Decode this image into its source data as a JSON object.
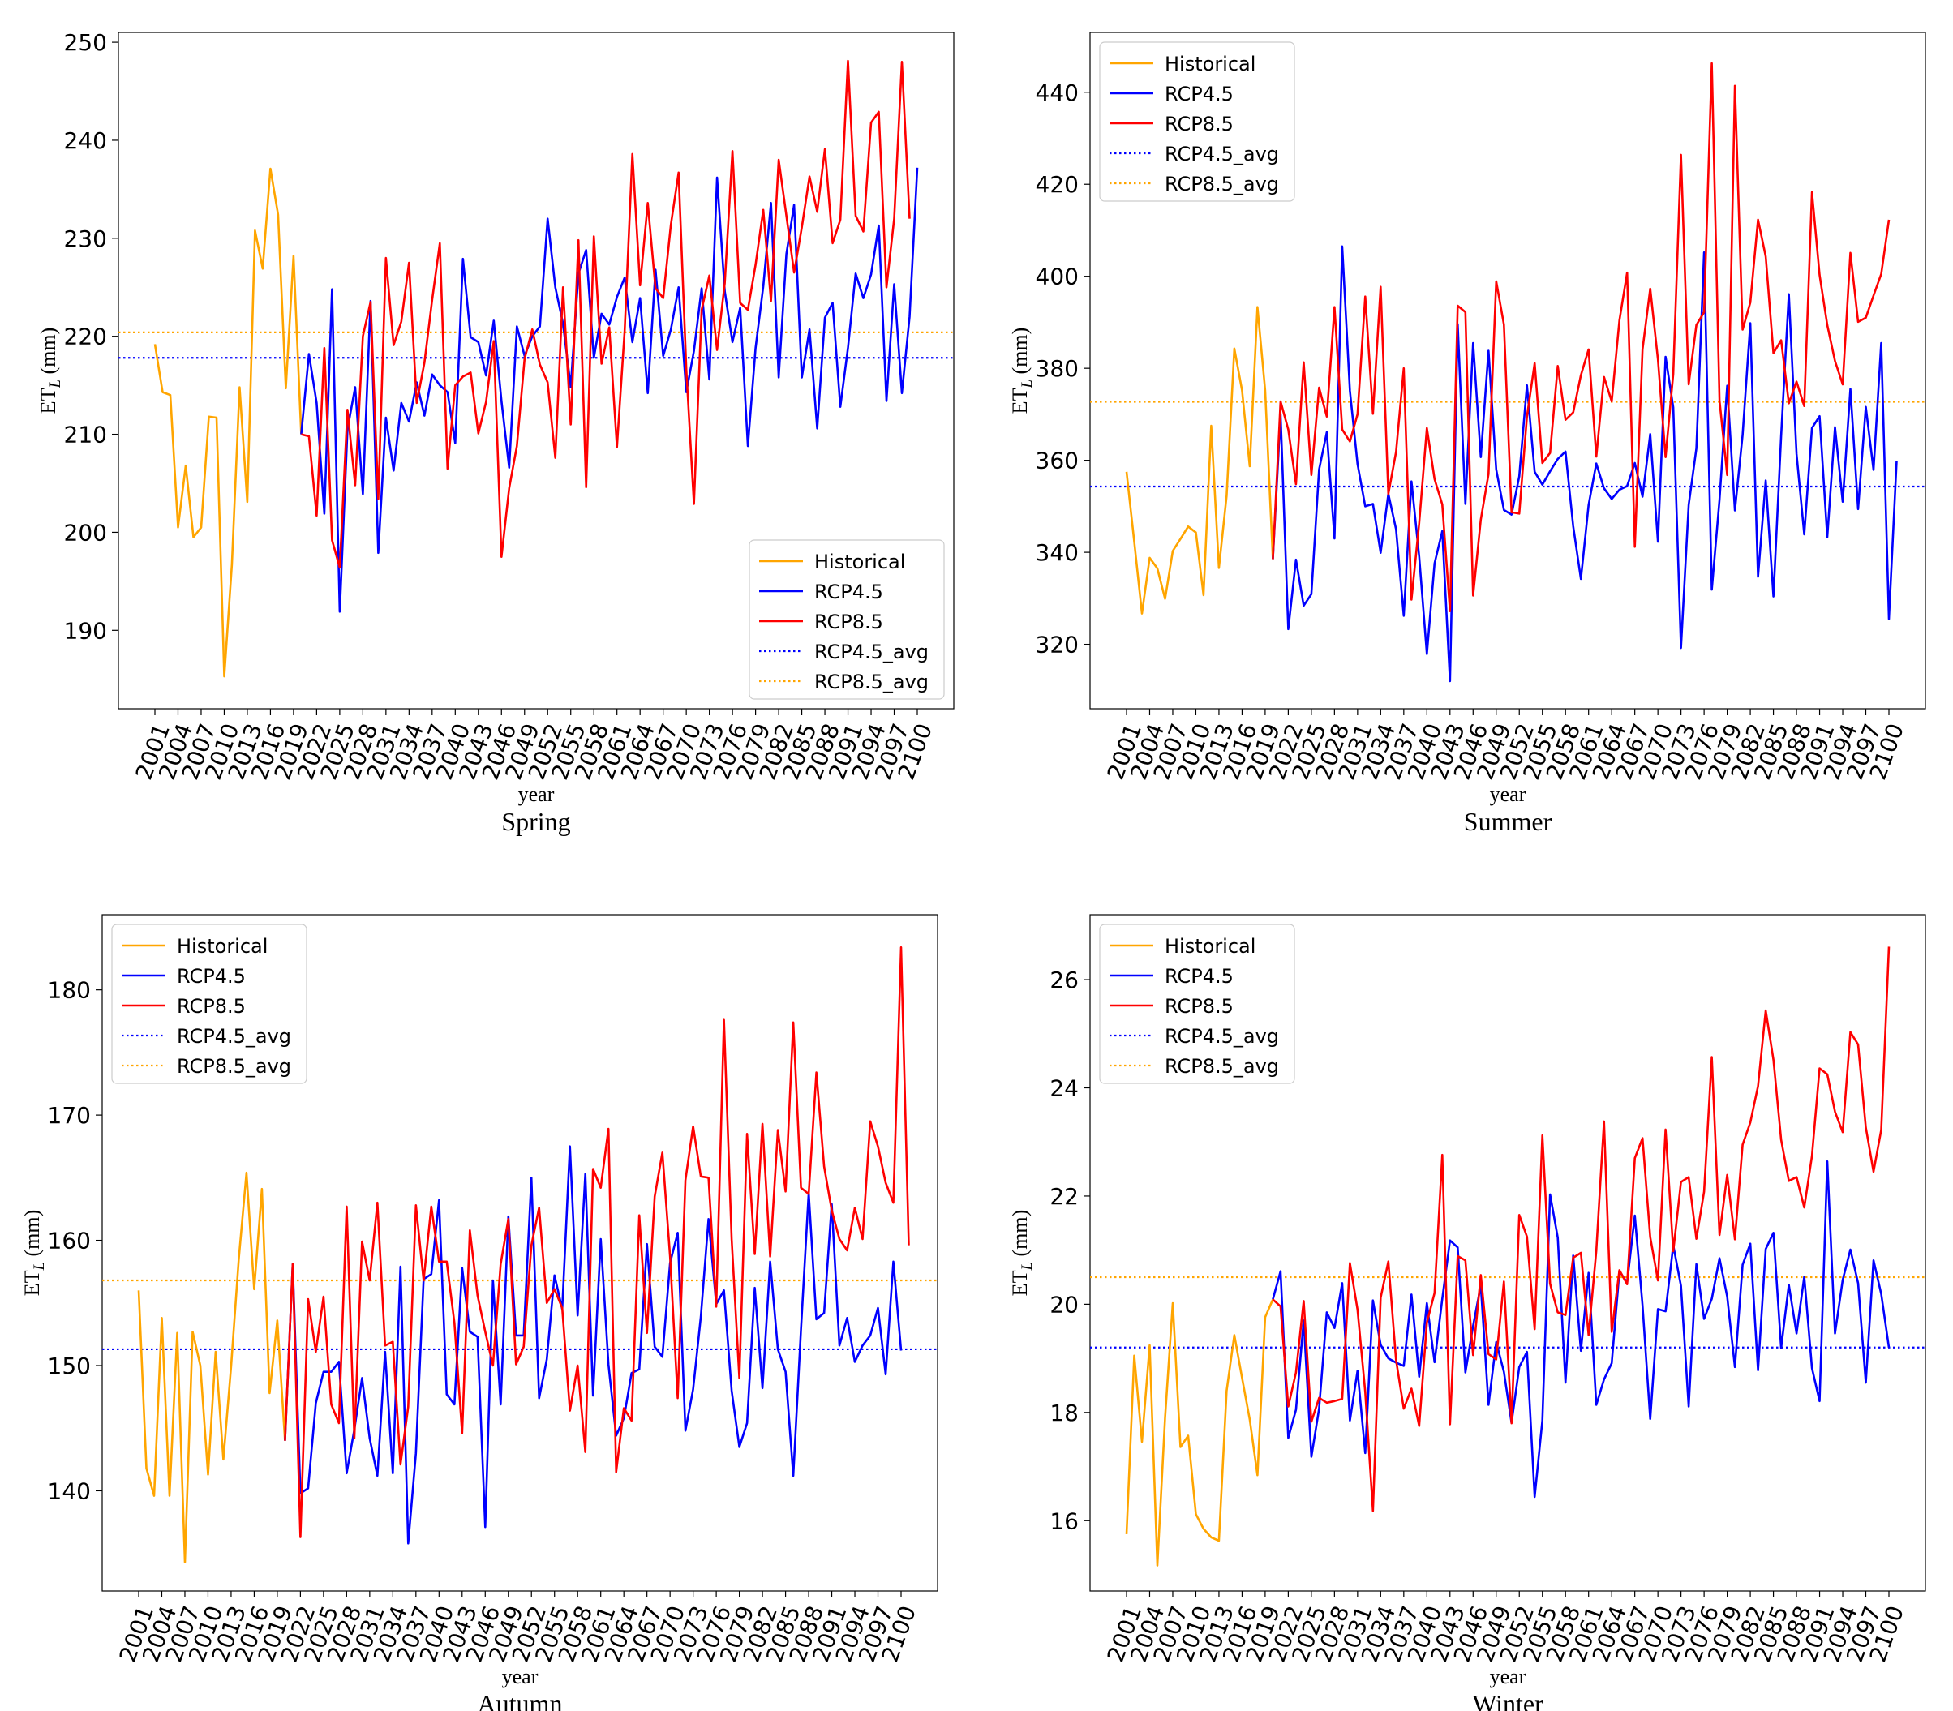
{
  "colors": {
    "historical": "#ffa500",
    "rcp45": "#0000ff",
    "rcp85": "#ff0000",
    "rcp45_avg": "#0000ff",
    "rcp85_avg": "#ffa500"
  },
  "legend_labels": [
    "Historical",
    "RCP4.5",
    "RCP8.5",
    "RCP4.5_avg",
    "RCP8.5_avg"
  ],
  "x_ticks": [
    2001,
    2004,
    2007,
    2010,
    2013,
    2016,
    2019,
    2022,
    2025,
    2028,
    2031,
    2034,
    2037,
    2040,
    2043,
    2046,
    2049,
    2052,
    2055,
    2058,
    2061,
    2064,
    2067,
    2070,
    2073,
    2076,
    2079,
    2082,
    2085,
    2088,
    2091,
    2094,
    2097,
    2100
  ],
  "chart_data": [
    {
      "type": "line",
      "title": "Spring",
      "xlabel": "year",
      "ylabel": "ET_L (mm)",
      "ylim": [
        182,
        251
      ],
      "yticks": [
        190,
        200,
        210,
        220,
        230,
        240,
        250
      ],
      "legend_position": "lower-right",
      "series": [
        {
          "name": "Historical",
          "x_start": 2001,
          "values": [
            219.2,
            214.3,
            214.0,
            200.5,
            206.8,
            199.5,
            200.5,
            211.8,
            211.7,
            185.3,
            196.7,
            214.8,
            203.1,
            230.8,
            226.9,
            237.1,
            232.4,
            214.7,
            228.2,
            210.0
          ]
        },
        {
          "name": "RCP4.5",
          "x_start": 2020,
          "values": [
            210.0,
            218.2,
            213.2,
            201.9,
            224.8,
            191.9,
            210.5,
            214.8,
            203.9,
            223.6,
            197.9,
            211.7,
            206.3,
            213.2,
            211.3,
            215.3,
            211.9,
            216.1,
            215.0,
            214.3,
            209.1,
            227.9,
            219.9,
            219.4,
            216.0,
            221.6,
            213.4,
            206.6,
            221.0,
            218.0,
            220.0,
            221.0,
            232.0,
            225.0,
            221.3,
            214.8,
            226.4,
            228.8,
            217.8,
            222.3,
            221.2,
            224.0,
            226.0,
            219.4,
            223.9,
            214.2,
            226.8,
            218.0,
            220.7,
            225.0,
            214.3,
            218.5,
            224.9,
            215.6,
            236.2,
            224.6,
            219.4,
            222.9,
            208.8,
            218.8,
            225.1,
            233.6,
            215.8,
            228.4,
            233.4,
            215.8,
            220.7,
            210.6,
            221.9,
            223.4,
            212.8,
            218.8,
            226.4,
            223.9,
            226.3,
            231.3,
            213.4,
            225.3,
            214.2,
            222.0,
            237.2
          ]
        },
        {
          "name": "RCP8.5",
          "x_start": 2020,
          "values": [
            210.0,
            209.8,
            201.7,
            218.8,
            199.2,
            196.4,
            212.5,
            204.8,
            220.0,
            223.5,
            203.4,
            228.0,
            219.1,
            221.5,
            227.5,
            213.2,
            217.3,
            223.7,
            229.5,
            206.5,
            215.0,
            215.9,
            216.3,
            210.1,
            213.3,
            219.5,
            197.5,
            204.5,
            208.8,
            217.7,
            220.7,
            217.1,
            215.3,
            207.6,
            225.0,
            211.0,
            229.8,
            204.6,
            230.2,
            217.2,
            220.9,
            208.7,
            220.6,
            238.6,
            225.2,
            233.6,
            224.9,
            223.9,
            231.4,
            236.7,
            216.6,
            202.9,
            222.7,
            226.2,
            218.6,
            225.4,
            238.9,
            223.4,
            222.7,
            227.3,
            232.9,
            223.6,
            238.0,
            232.3,
            226.5,
            231.1,
            236.3,
            232.7,
            239.1,
            229.5,
            231.9,
            248.1,
            232.3,
            230.7,
            241.8,
            242.9,
            225.0,
            232.0,
            248.0,
            232.0
          ]
        }
      ],
      "avg_lines": [
        {
          "name": "RCP4.5_avg",
          "value": 217.8
        },
        {
          "name": "RCP8.5_avg",
          "value": 220.4
        }
      ]
    },
    {
      "type": "line",
      "title": "Summer",
      "xlabel": "year",
      "ylabel": "ET_L (mm)",
      "ylim": [
        306,
        453
      ],
      "yticks": [
        320,
        340,
        360,
        380,
        400,
        420,
        440
      ],
      "legend_position": "upper-left",
      "series": [
        {
          "name": "Historical",
          "x_start": 2001,
          "values": [
            357.5,
            342.3,
            326.7,
            338.8,
            336.5,
            329.9,
            340.3,
            342.9,
            345.6,
            344.3,
            330.7,
            367.5,
            336.6,
            352.3,
            384.3,
            375.2,
            358.7,
            393.3,
            375.2,
            338.5
          ]
        },
        {
          "name": "RCP4.5",
          "x_start": 2020,
          "values": [
            338.5,
            370.0,
            323.3,
            338.4,
            328.4,
            330.9,
            358.0,
            366.1,
            343.0,
            406.5,
            375.1,
            359.2,
            350.0,
            350.5,
            339.9,
            352.7,
            345.0,
            326.2,
            355.4,
            339.1,
            317.9,
            337.6,
            344.6,
            312.0,
            389.6,
            350.5,
            385.5,
            360.7,
            383.8,
            358.0,
            349.2,
            348.2,
            356.5,
            376.3,
            357.5,
            354.7,
            357.6,
            360.3,
            361.9,
            345.7,
            334.2,
            350.3,
            359.3,
            353.9,
            351.6,
            353.6,
            354.4,
            359.4,
            352.1,
            365.7,
            342.3,
            382.5,
            371.5,
            319.2,
            350.3,
            362.6,
            405.2,
            331.9,
            351.4,
            376.2,
            349.1,
            365.5,
            389.8,
            334.7,
            355.6,
            330.4,
            365.3,
            396.1,
            361.4,
            343.9,
            367.0,
            369.6,
            343.3,
            367.2,
            351.0,
            375.5,
            349.4,
            371.6,
            357.9,
            385.5,
            325.5,
            359.9
          ]
        },
        {
          "name": "RCP8.5",
          "x_start": 2020,
          "values": [
            338.5,
            372.8,
            366.7,
            354.8,
            381.3,
            356.8,
            375.8,
            369.5,
            393.3,
            366.7,
            364.1,
            370.0,
            395.6,
            370.1,
            397.7,
            352.7,
            361.8,
            380.0,
            329.7,
            346.3,
            367.0,
            355.9,
            350.4,
            327.2,
            393.6,
            392.2,
            330.6,
            347.1,
            357.0,
            398.9,
            389.5,
            348.7,
            348.4,
            369.5,
            381.1,
            359.4,
            361.6,
            380.5,
            368.8,
            370.4,
            378.5,
            384.1,
            360.8,
            378.1,
            372.8,
            390.4,
            400.8,
            341.2,
            384.1,
            397.3,
            381.9,
            360.7,
            378.8,
            426.4,
            376.5,
            389.4,
            392.2,
            446.3,
            373.0,
            356.8,
            441.4,
            388.4,
            394.3,
            412.3,
            404.3,
            383.3,
            386.1,
            372.4,
            377.1,
            371.8,
            418.3,
            400.3,
            389.4,
            381.6,
            376.5,
            405.1,
            390.1,
            391.0,
            395.8,
            400.5,
            412.3
          ]
        }
      ],
      "avg_lines": [
        {
          "name": "RCP4.5_avg",
          "value": 354.3
        },
        {
          "name": "RCP8.5_avg",
          "value": 372.7
        }
      ]
    },
    {
      "type": "line",
      "title": "Autumn",
      "xlabel": "year",
      "ylabel": "ET_L (mm)",
      "ylim": [
        132,
        186
      ],
      "yticks": [
        140,
        150,
        160,
        170,
        180
      ],
      "legend_position": "upper-left",
      "series": [
        {
          "name": "Historical",
          "x_start": 2001,
          "values": [
            156.0,
            141.8,
            139.6,
            153.8,
            139.6,
            152.6,
            134.3,
            152.7,
            150.0,
            141.3,
            151.1,
            142.5,
            149.9,
            158.5,
            165.4,
            156.1,
            164.1,
            147.8,
            153.6,
            144.0
          ]
        },
        {
          "name": "RCP4.5",
          "x_start": 2020,
          "values": [
            144.0,
            158.1,
            139.8,
            140.2,
            147.0,
            149.5,
            149.5,
            150.3,
            141.4,
            144.9,
            149.0,
            144.2,
            141.2,
            151.1,
            141.4,
            157.9,
            135.8,
            143.0,
            156.9,
            157.3,
            163.2,
            147.7,
            146.9,
            157.8,
            152.7,
            152.3,
            137.1,
            156.8,
            146.9,
            161.9,
            152.4,
            152.4,
            165.0,
            147.4,
            150.5,
            157.2,
            154.5,
            167.5,
            154.0,
            165.3,
            147.6,
            160.1,
            150.1,
            144.4,
            145.8,
            149.4,
            149.7,
            159.7,
            151.5,
            150.7,
            158.2,
            160.6,
            144.8,
            148.1,
            153.9,
            161.7,
            154.9,
            156.0,
            148.0,
            143.5,
            145.4,
            156.2,
            148.2,
            158.3,
            151.3,
            149.5,
            141.2,
            152.9,
            163.8,
            153.7,
            154.2,
            162.9,
            151.6,
            153.8,
            150.3,
            151.6,
            152.4,
            154.6,
            149.3,
            158.3,
            151.2
          ]
        },
        {
          "name": "RCP8.5",
          "x_start": 2020,
          "values": [
            144.0,
            158.1,
            136.3,
            155.3,
            151.1,
            155.5,
            146.9,
            145.4,
            162.7,
            144.2,
            159.9,
            156.8,
            163.0,
            151.6,
            151.9,
            142.1,
            146.7,
            162.8,
            156.8,
            162.7,
            158.3,
            158.3,
            153.4,
            144.6,
            160.8,
            155.6,
            152.7,
            150.0,
            158.1,
            161.7,
            150.1,
            151.5,
            159.6,
            162.6,
            155.0,
            156.1,
            154.6,
            146.4,
            150.0,
            143.1,
            165.7,
            164.2,
            168.9,
            141.5,
            146.6,
            145.6,
            162.0,
            152.6,
            163.5,
            167.0,
            158.7,
            147.4,
            164.8,
            169.1,
            165.1,
            165.0,
            154.7,
            177.6,
            160.1,
            149.0,
            168.5,
            158.9,
            169.3,
            158.7,
            168.8,
            163.9,
            177.4,
            164.2,
            163.7,
            173.4,
            165.9,
            162.4,
            160.1,
            159.2,
            162.6,
            160.1,
            169.5,
            167.5,
            164.6,
            163.0,
            183.4,
            159.6
          ]
        }
      ],
      "avg_lines": [
        {
          "name": "RCP4.5_avg",
          "value": 151.3
        },
        {
          "name": "RCP8.5_avg",
          "value": 156.8
        }
      ]
    },
    {
      "type": "line",
      "title": "Winter",
      "xlabel": "year",
      "ylabel": "ET_L (mm)",
      "ylim": [
        14.7,
        27.2
      ],
      "yticks": [
        16,
        18,
        20,
        22,
        24,
        26
      ],
      "legend_position": "upper-left",
      "series": [
        {
          "name": "Historical",
          "x_start": 2001,
          "values": [
            15.75,
            19.05,
            17.46,
            19.24,
            15.17,
            17.9,
            20.02,
            17.36,
            17.57,
            16.12,
            15.85,
            15.69,
            15.63,
            18.4,
            19.43,
            18.64,
            17.87,
            16.84,
            19.76,
            20.09
          ]
        },
        {
          "name": "RCP4.5",
          "x_start": 2020,
          "values": [
            20.09,
            20.61,
            17.53,
            18.05,
            19.7,
            17.18,
            18.07,
            19.85,
            19.56,
            20.39,
            17.85,
            18.77,
            17.25,
            20.07,
            19.25,
            19.0,
            18.92,
            18.86,
            20.18,
            18.66,
            20.02,
            18.93,
            20.1,
            21.18,
            21.05,
            18.74,
            19.6,
            20.35,
            18.14,
            19.3,
            18.75,
            17.81,
            18.84,
            19.12,
            16.44,
            17.85,
            22.03,
            21.23,
            18.55,
            20.9,
            19.14,
            20.58,
            18.14,
            18.61,
            18.91,
            20.61,
            20.4,
            21.64,
            19.98,
            17.88,
            19.91,
            19.87,
            21.09,
            20.34,
            18.11,
            20.74,
            19.73,
            20.1,
            20.85,
            20.14,
            18.84,
            20.73,
            21.12,
            18.78,
            21.02,
            21.32,
            19.19,
            20.36,
            19.46,
            20.51,
            18.82,
            18.21,
            22.64,
            19.46,
            20.45,
            21.01,
            20.39,
            18.55,
            20.81,
            20.19,
            19.2
          ]
        },
        {
          "name": "RCP8.5",
          "x_start": 2020,
          "values": [
            20.09,
            19.96,
            18.11,
            18.74,
            20.06,
            17.83,
            18.27,
            18.18,
            18.21,
            18.25,
            20.76,
            19.9,
            18.38,
            16.18,
            20.12,
            20.79,
            18.97,
            18.07,
            18.44,
            17.75,
            19.66,
            20.21,
            22.76,
            17.78,
            20.89,
            20.81,
            19.06,
            20.54,
            19.08,
            18.98,
            20.42,
            17.8,
            21.65,
            21.25,
            19.54,
            23.12,
            20.38,
            19.85,
            19.8,
            20.86,
            20.95,
            19.43,
            20.99,
            23.38,
            19.49,
            20.63,
            20.37,
            22.7,
            23.07,
            21.24,
            20.44,
            23.23,
            20.98,
            22.26,
            22.35,
            21.21,
            22.08,
            24.57,
            21.28,
            22.39,
            21.2,
            22.95,
            23.36,
            24.03,
            25.43,
            24.52,
            23.04,
            22.28,
            22.35,
            21.79,
            22.74,
            24.36,
            24.25,
            23.56,
            23.18,
            25.03,
            24.8,
            23.27,
            22.45,
            23.22,
            26.61
          ]
        }
      ],
      "avg_lines": [
        {
          "name": "RCP4.5_avg",
          "value": 19.2
        },
        {
          "name": "RCP8.5_avg",
          "value": 20.5
        }
      ]
    }
  ]
}
